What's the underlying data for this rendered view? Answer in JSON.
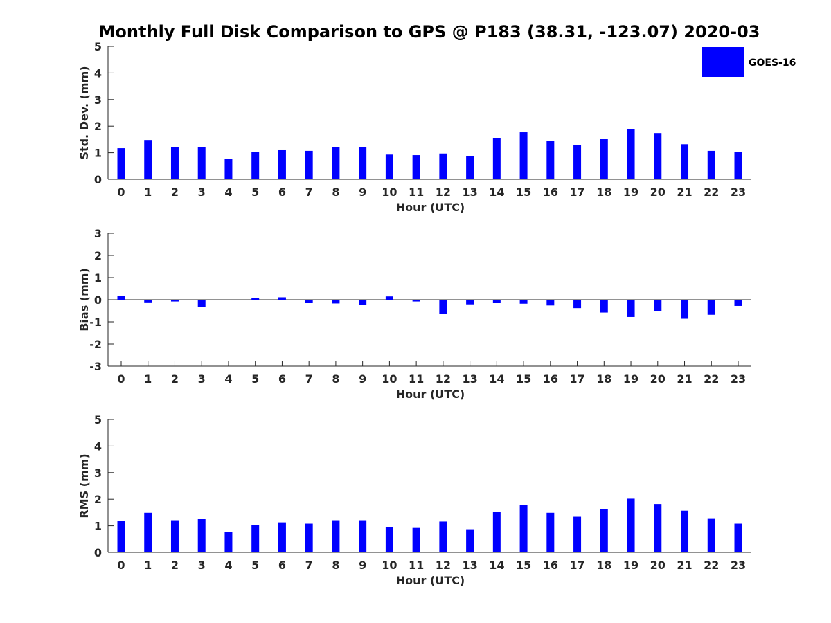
{
  "title": "Monthly Full Disk Comparison to GPS @ P183 (38.31, -123.07) 2020-03",
  "legend": {
    "label": "GOES-16",
    "color": "#0000ff"
  },
  "chart_data": [
    {
      "type": "bar",
      "xlabel": "Hour (UTC)",
      "ylabel": "Std. Dev. (mm)",
      "ylim": [
        0,
        5
      ],
      "yticks": [
        0,
        1,
        2,
        3,
        4,
        5
      ],
      "categories": [
        "0",
        "1",
        "2",
        "3",
        "4",
        "5",
        "6",
        "7",
        "8",
        "9",
        "10",
        "11",
        "12",
        "13",
        "14",
        "15",
        "16",
        "17",
        "18",
        "19",
        "20",
        "21",
        "22",
        "23"
      ],
      "series": [
        {
          "name": "GOES-16",
          "color": "#0000ff",
          "values": [
            1.17,
            1.48,
            1.2,
            1.2,
            0.76,
            1.02,
            1.12,
            1.07,
            1.22,
            1.2,
            0.93,
            0.91,
            0.97,
            0.86,
            1.54,
            1.77,
            1.45,
            1.28,
            1.51,
            1.88,
            1.74,
            1.32,
            1.07,
            1.04
          ]
        }
      ]
    },
    {
      "type": "bar",
      "xlabel": "Hour (UTC)",
      "ylabel": "Bias (mm)",
      "ylim": [
        -3,
        3
      ],
      "yticks": [
        -3,
        -2,
        -1,
        0,
        1,
        2,
        3
      ],
      "categories": [
        "0",
        "1",
        "2",
        "3",
        "4",
        "5",
        "6",
        "7",
        "8",
        "9",
        "10",
        "11",
        "12",
        "13",
        "14",
        "15",
        "16",
        "17",
        "18",
        "19",
        "20",
        "21",
        "22",
        "23"
      ],
      "series": [
        {
          "name": "GOES-16",
          "color": "#0000ff",
          "values": [
            0.18,
            -0.12,
            -0.08,
            -0.32,
            0.0,
            0.09,
            0.11,
            -0.14,
            -0.17,
            -0.22,
            0.15,
            -0.08,
            -0.65,
            -0.21,
            -0.14,
            -0.18,
            -0.26,
            -0.38,
            -0.58,
            -0.78,
            -0.53,
            -0.86,
            -0.68,
            -0.28
          ]
        }
      ]
    },
    {
      "type": "bar",
      "xlabel": "Hour (UTC)",
      "ylabel": "RMS (mm)",
      "ylim": [
        0,
        5
      ],
      "yticks": [
        0,
        1,
        2,
        3,
        4,
        5
      ],
      "categories": [
        "0",
        "1",
        "2",
        "3",
        "4",
        "5",
        "6",
        "7",
        "8",
        "9",
        "10",
        "11",
        "12",
        "13",
        "14",
        "15",
        "16",
        "17",
        "18",
        "19",
        "20",
        "21",
        "22",
        "23"
      ],
      "series": [
        {
          "name": "GOES-16",
          "color": "#0000ff",
          "values": [
            1.18,
            1.49,
            1.21,
            1.25,
            0.76,
            1.03,
            1.13,
            1.08,
            1.21,
            1.21,
            0.94,
            0.92,
            1.16,
            0.87,
            1.52,
            1.78,
            1.49,
            1.34,
            1.63,
            2.02,
            1.82,
            1.57,
            1.26,
            1.08
          ]
        }
      ]
    }
  ]
}
